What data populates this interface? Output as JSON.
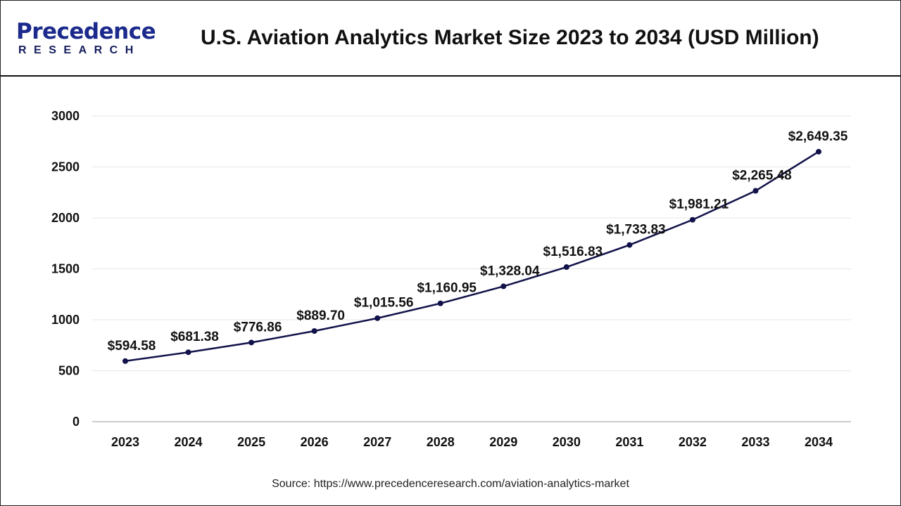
{
  "header": {
    "logo_text_top": "Precedence",
    "logo_text_bottom": "RESEARCH",
    "title": "U.S. Aviation Analytics Market Size 2023 to 2034 (USD Million)"
  },
  "source": "Source: https://www.precedenceresearch.com/aviation-analytics-market",
  "chart_data": {
    "type": "line",
    "title": "U.S. Aviation Analytics Market Size 2023 to 2034 (USD Million)",
    "xlabel": "",
    "ylabel": "",
    "categories": [
      "2023",
      "2024",
      "2025",
      "2026",
      "2027",
      "2028",
      "2029",
      "2030",
      "2031",
      "2032",
      "2033",
      "2034"
    ],
    "values": [
      594.58,
      681.38,
      776.86,
      889.7,
      1015.56,
      1160.95,
      1328.04,
      1516.83,
      1733.83,
      1981.21,
      2265.48,
      2649.35
    ],
    "data_labels": [
      "$594.58",
      "$681.38",
      "$776.86",
      "$889.70",
      "$1,015.56",
      "$1,160.95",
      "$1,328.04",
      "$1,516.83",
      "$1,733.83",
      "$1,981.21",
      "$2,265.48",
      "$2,649.35"
    ],
    "ylim": [
      0,
      3000
    ],
    "yticks": [
      0,
      500,
      1000,
      1500,
      2000,
      2500,
      3000
    ],
    "grid": true,
    "line_color": "#12124a"
  }
}
